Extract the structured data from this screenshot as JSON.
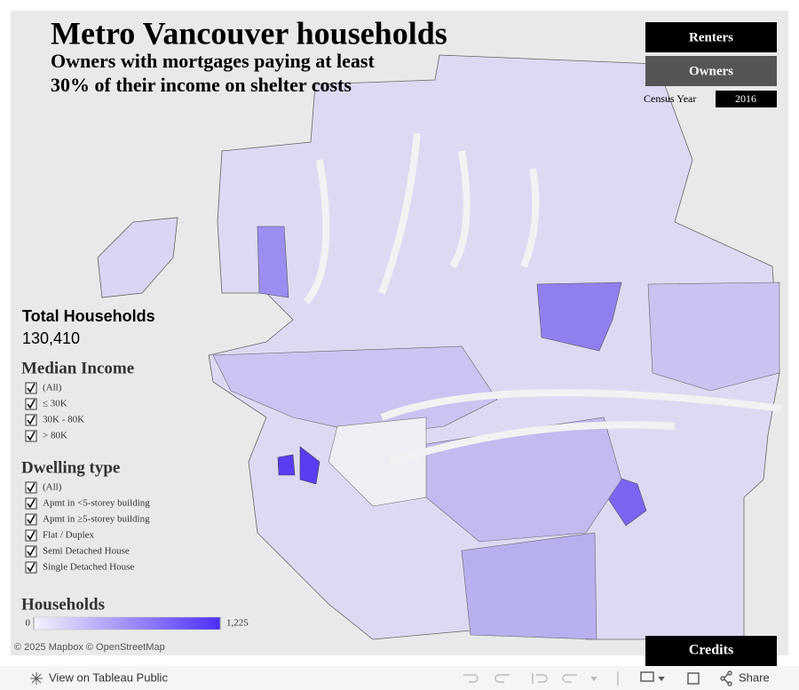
{
  "header": {
    "title": "Metro Vancouver households",
    "subtitle_lines": [
      "Owners with mortgages paying at least",
      "30% of their income on shelter costs"
    ]
  },
  "toggles": [
    "Renters",
    "Owners"
  ],
  "census_year": {
    "label": "Census Year",
    "value": "2016"
  },
  "total_households": {
    "label": "Total Households",
    "value": "130,410"
  },
  "median_income": {
    "title": "Median Income",
    "options": [
      "(All)",
      "≤ 30K",
      "30K - 80K",
      "> 80K"
    ]
  },
  "dwelling_type": {
    "title": "Dwelling type",
    "options": [
      "(All)",
      "Apmt in <5-storey building",
      "Apmt in ≥5-storey building",
      "Flat / Duplex",
      "Semi Detached House",
      "Single Detached House"
    ]
  },
  "legend": {
    "title": "Households",
    "min": 0,
    "max": {
      "value": 1225,
      "label": "1,225"
    }
  },
  "attribution": "© 2025 Mapbox © OpenStreetMap",
  "credits": "Credits",
  "toolbar": {
    "view": "View on Tableau Public",
    "share": "Share"
  }
}
